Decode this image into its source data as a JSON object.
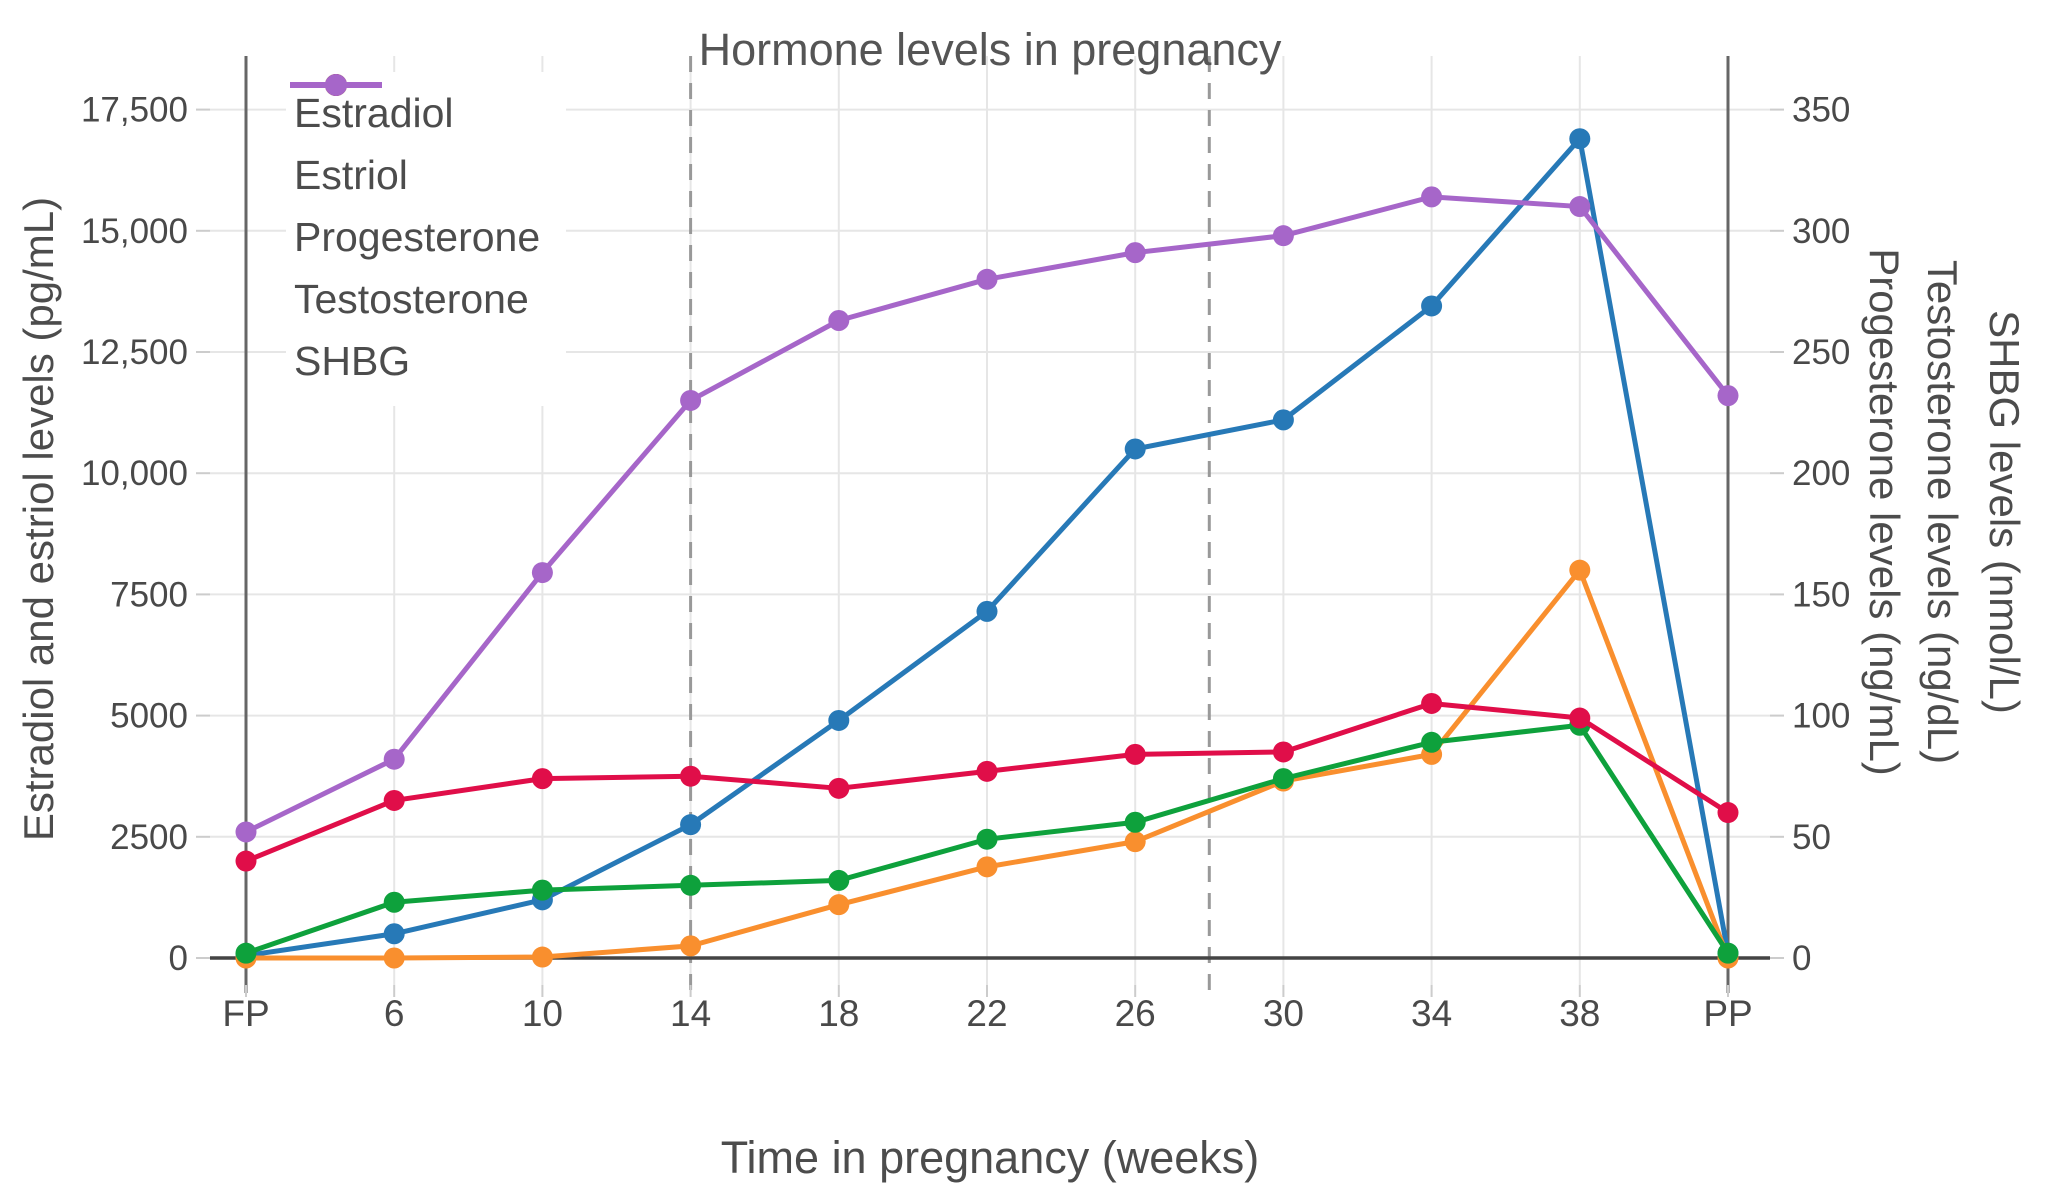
{
  "title": "Hormone levels in pregnancy",
  "x_axis": {
    "title": "Time in pregnancy (weeks)",
    "tick_labels": [
      "FP",
      "6",
      "10",
      "14",
      "18",
      "22",
      "26",
      "30",
      "34",
      "38",
      "PP"
    ]
  },
  "left_axis": {
    "title": "Estradiol and estriol levels (pg/mL)",
    "tick_labels": [
      "0",
      "2500",
      "5000",
      "7500",
      "10,000",
      "12,500",
      "15,000",
      "17,500"
    ],
    "tick_values": [
      0,
      2500,
      5000,
      7500,
      10000,
      12500,
      15000,
      17500
    ]
  },
  "right_axis": {
    "titles": [
      "Progesterone levels (ng/mL)",
      "Testosterone levels (ng/dL)",
      "SHBG levels (nmol/L)"
    ],
    "tick_labels": [
      "0",
      "50",
      "100",
      "150",
      "200",
      "250",
      "300",
      "350"
    ],
    "tick_values": [
      0,
      50,
      100,
      150,
      200,
      250,
      300,
      350
    ]
  },
  "legend": {
    "items": [
      "Estradiol",
      "Estriol",
      "Progesterone",
      "Testosterone",
      "SHBG"
    ],
    "position": "top-left-inside"
  },
  "colors": {
    "estradiol": "#2779b7",
    "estriol": "#f98f2e",
    "progesterone": "#0ea13c",
    "testosterone": "#e00e49",
    "shbg": "#a666c9",
    "gridline": "#e6e6e6",
    "zeroline": "#444444",
    "spine": "#666666",
    "trimester_dash": "#999999",
    "tick": "#cccccc",
    "text": "#494949"
  },
  "chart_data": {
    "type": "line",
    "title": "Hormone levels in pregnancy",
    "xlabel": "Time in pregnancy (weeks)",
    "ylabel_left": "Estradiol and estriol levels (pg/mL)",
    "ylabel_right": "Progesterone levels (ng/mL); Testosterone levels (ng/dL); SHBG levels (nmol/L)",
    "categories": [
      "FP",
      "6",
      "10",
      "14",
      "18",
      "22",
      "26",
      "30",
      "34",
      "38",
      "PP"
    ],
    "left_ylim": [
      0,
      18600
    ],
    "right_ylim": [
      0,
      372
    ],
    "grid": true,
    "legend_position": "top-left-inside",
    "trimester_boundary_weeks": [
      "14",
      "28"
    ],
    "series": [
      {
        "name": "Estradiol",
        "axis": "left",
        "unit": "pg/mL",
        "color": "#2779b7",
        "values": [
          50,
          500,
          1200,
          2750,
          4900,
          7150,
          10500,
          11100,
          13450,
          16900,
          100
        ]
      },
      {
        "name": "Estriol",
        "axis": "left",
        "unit": "pg/mL",
        "color": "#f98f2e",
        "values": [
          0,
          0,
          20,
          250,
          1100,
          1880,
          2400,
          3650,
          4200,
          8000,
          0
        ]
      },
      {
        "name": "Progesterone",
        "axis": "right",
        "unit": "ng/mL",
        "color": "#0ea13c",
        "values": [
          2,
          23,
          28,
          30,
          32,
          49,
          56,
          74,
          89,
          96,
          2
        ]
      },
      {
        "name": "Testosterone",
        "axis": "right",
        "unit": "ng/dL",
        "color": "#e00e49",
        "values": [
          40,
          65,
          74,
          75,
          70,
          77,
          84,
          85,
          105,
          99,
          60
        ]
      },
      {
        "name": "SHBG",
        "axis": "right",
        "unit": "nmol/L",
        "color": "#a666c9",
        "values": [
          52,
          82,
          159,
          230,
          263,
          280,
          291,
          298,
          314,
          310,
          232
        ]
      }
    ]
  }
}
